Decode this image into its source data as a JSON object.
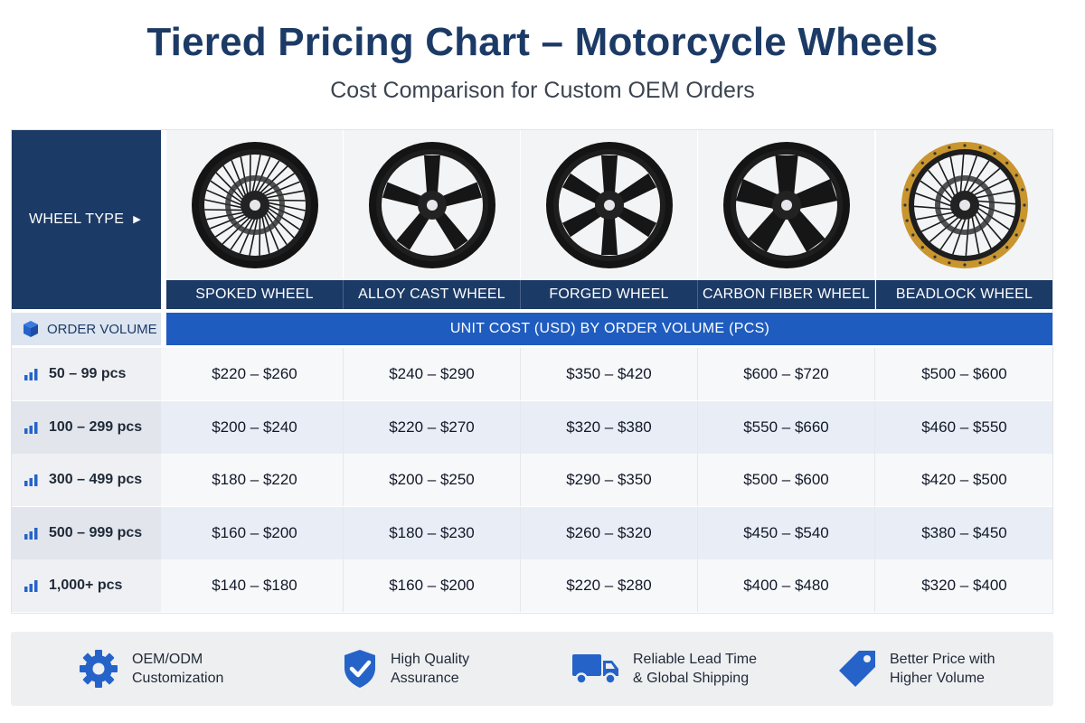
{
  "header": {
    "title": "Tiered Pricing Chart – Motorcycle Wheels",
    "subtitle": "Cost Comparison for Custom OEM Orders"
  },
  "table": {
    "wheel_type_label": "WHEEL TYPE",
    "order_volume_label": "ORDER VOLUME",
    "unit_cost_label": "UNIT COST (USD) BY ORDER VOLUME (PCS)"
  },
  "chart_data": {
    "type": "table",
    "title": "Tiered Pricing Chart – Motorcycle Wheels",
    "columns": [
      "SPOKED WHEEL",
      "ALLOY CAST WHEEL",
      "FORGED WHEEL",
      "CARBON FIBER WHEEL",
      "BEADLOCK WHEEL"
    ],
    "rows": [
      {
        "volume": "50 – 99 pcs",
        "prices": [
          "$220 – $260",
          "$240 – $290",
          "$350 – $420",
          "$600 – $720",
          "$500 – $600"
        ]
      },
      {
        "volume": "100 – 299 pcs",
        "prices": [
          "$200 – $240",
          "$220 – $270",
          "$320 – $380",
          "$550 – $660",
          "$460 – $550"
        ]
      },
      {
        "volume": "300 – 499 pcs",
        "prices": [
          "$180 – $220",
          "$200 – $250",
          "$290 – $350",
          "$500 – $600",
          "$420 – $500"
        ]
      },
      {
        "volume": "500 – 999 pcs",
        "prices": [
          "$160 – $200",
          "$180 – $230",
          "$260 – $320",
          "$450 – $540",
          "$380 – $450"
        ]
      },
      {
        "volume": "1,000+ pcs",
        "prices": [
          "$140 – $180",
          "$160 – $200",
          "$220 – $280",
          "$400 – $480",
          "$320 – $400"
        ]
      }
    ]
  },
  "footer": {
    "features": [
      {
        "icon": "gear-icon",
        "line1": "OEM/ODM",
        "line2": "Customization"
      },
      {
        "icon": "shield-check-icon",
        "line1": "High Quality",
        "line2": "Assurance"
      },
      {
        "icon": "truck-icon",
        "line1": "Reliable Lead Time",
        "line2": "& Global Shipping"
      },
      {
        "icon": "price-tag-icon",
        "line1": "Better Price with",
        "line2": "Higher Volume"
      }
    ]
  },
  "colors": {
    "navy": "#1c3a66",
    "blue": "#1f5cbf",
    "icon_blue": "#2563c9",
    "gold": "#c9952e"
  }
}
